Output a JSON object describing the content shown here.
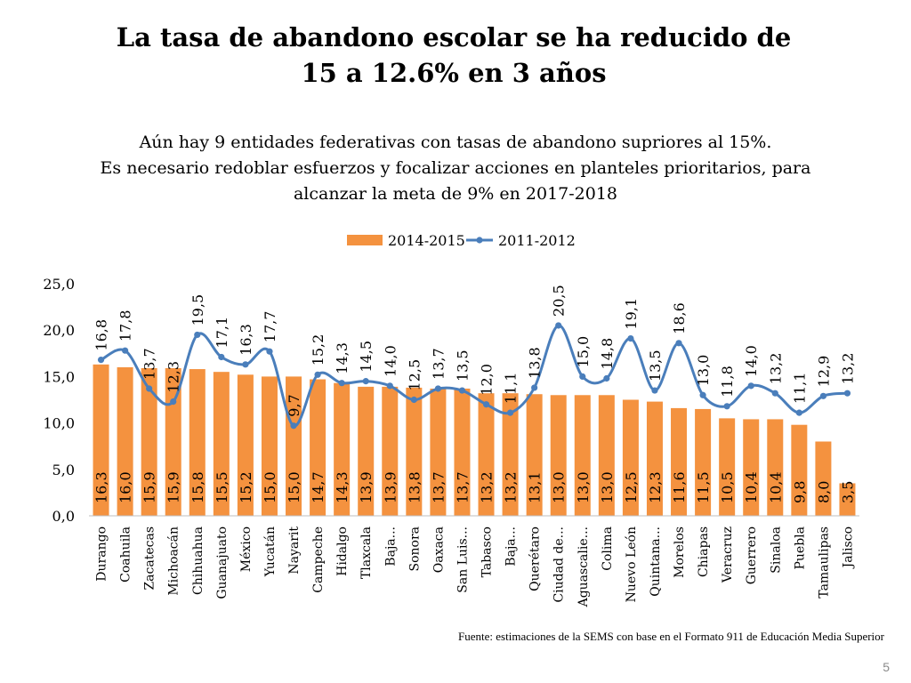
{
  "slide": {
    "title_line1": "La tasa de abandono escolar se ha reducido de",
    "title_line2": "15 a 12.6% en 3 años",
    "subtitle_line1": "Aún hay 9 entidades federativas con tasas de abandono supriores al 15%.",
    "subtitle_line2": "Es necesario redoblar esfuerzos y focalizar acciones en planteles prioritarios, para",
    "subtitle_line3": "alcanzar la meta de 9% en 2017-2018",
    "source": "Fuente: estimaciones de la SEMS con base en el Formato 911 de Educación Media Superior",
    "page_number": "5"
  },
  "chart_data": {
    "type": "bar",
    "title": "",
    "xlabel": "",
    "ylabel": "",
    "ylim": [
      0,
      25
    ],
    "yticks": [
      0,
      5,
      10,
      15,
      20,
      25
    ],
    "ytick_labels": [
      "0,0",
      "5,0",
      "10,0",
      "15,0",
      "20,0",
      "25,0"
    ],
    "legend_position": "top-center",
    "categories": [
      "Durango",
      "Coahuila",
      "Zacatecas",
      "Michoacán",
      "Chihuahua",
      "Guanajuato",
      "México",
      "Yucatán",
      "Nayarit",
      "Campeche",
      "Hidalgo",
      "Tlaxcala",
      "Baja...",
      "Sonora",
      "Oaxaca",
      "San Luis...",
      "Tabasco",
      "Baja...",
      "Querétaro",
      "Ciudad de...",
      "Aguascalie...",
      "Colima",
      "Nuevo León",
      "Quintana...",
      "Morelos",
      "Chiapas",
      "Veracruz",
      "Guerrero",
      "Sinaloa",
      "Puebla",
      "Tamaulipas",
      "Jalisco"
    ],
    "series": [
      {
        "name": "2014-2015",
        "kind": "bar",
        "color": "#F4923F",
        "values": [
          16.3,
          16.0,
          15.9,
          15.9,
          15.8,
          15.5,
          15.2,
          15.0,
          15.0,
          14.7,
          14.3,
          13.9,
          13.9,
          13.8,
          13.7,
          13.7,
          13.2,
          13.2,
          13.1,
          13.0,
          13.0,
          13.0,
          12.5,
          12.3,
          11.6,
          11.5,
          10.5,
          10.4,
          10.4,
          9.8,
          8.0,
          3.5
        ],
        "labels": [
          "16,3",
          "16,0",
          "15,9",
          "15,9",
          "15,8",
          "15,5",
          "15,2",
          "15,0",
          "15,0",
          "14,7",
          "14,3",
          "13,9",
          "13,9",
          "13,8",
          "13,7",
          "13,7",
          "13,2",
          "13,2",
          "13,1",
          "13,0",
          "13,0",
          "13,0",
          "12,5",
          "12,3",
          "11,6",
          "11,5",
          "10,5",
          "10,4",
          "10,4",
          "9,8",
          "8,0",
          "3,5"
        ]
      },
      {
        "name": "2011-2012",
        "kind": "line",
        "color": "#4A7EBB",
        "values": [
          16.8,
          17.8,
          13.7,
          12.3,
          19.5,
          17.1,
          16.3,
          17.7,
          9.7,
          15.2,
          14.3,
          14.5,
          14.0,
          12.5,
          13.7,
          13.5,
          12.0,
          11.1,
          13.8,
          20.5,
          15.0,
          14.8,
          19.1,
          13.5,
          18.6,
          13.0,
          11.8,
          14.0,
          13.2,
          11.1,
          12.9,
          13.2
        ],
        "labels": [
          "16,8",
          "17,8",
          "13,7",
          "12,3",
          "19,5",
          "17,1",
          "16,3",
          "17,7",
          "9,7",
          "15,2",
          "14,3",
          "14,5",
          "14,0",
          "12,5",
          "13,7",
          "13,5",
          "12,0",
          "11,1",
          "13,8",
          "20,5",
          "15,0",
          "14,8",
          "19,1",
          "13,5",
          "18,6",
          "13,0",
          "11,8",
          "14,0",
          "13,2",
          "11,1",
          "12,9",
          "13,2"
        ]
      }
    ]
  }
}
